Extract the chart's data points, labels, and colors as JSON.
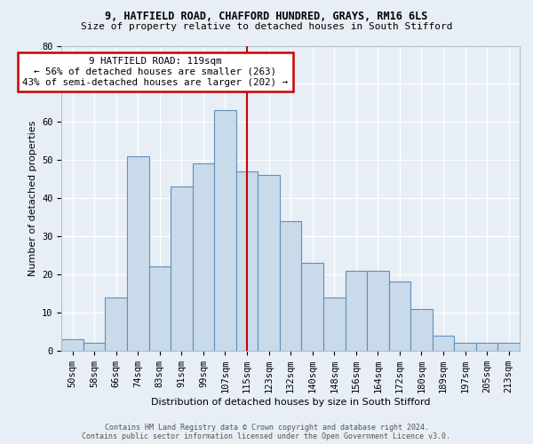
{
  "title_line1": "9, HATFIELD ROAD, CHAFFORD HUNDRED, GRAYS, RM16 6LS",
  "title_line2": "Size of property relative to detached houses in South Stifford",
  "xlabel": "Distribution of detached houses by size in South Stifford",
  "ylabel": "Number of detached properties",
  "bar_labels": [
    "50sqm",
    "58sqm",
    "66sqm",
    "74sqm",
    "83sqm",
    "91sqm",
    "99sqm",
    "107sqm",
    "115sqm",
    "123sqm",
    "132sqm",
    "140sqm",
    "148sqm",
    "156sqm",
    "164sqm",
    "172sqm",
    "180sqm",
    "189sqm",
    "197sqm",
    "205sqm",
    "213sqm"
  ],
  "bar_values": [
    3,
    2,
    14,
    51,
    22,
    43,
    49,
    63,
    47,
    46,
    34,
    23,
    14,
    21,
    21,
    18,
    11,
    4,
    2,
    2,
    2
  ],
  "bar_color": "#c9daea",
  "bar_edge_color": "#6090bb",
  "vline_x_index": 8,
  "vline_color": "#cc0000",
  "annotation_line1": "9 HATFIELD ROAD: 119sqm",
  "annotation_line2": "← 56% of detached houses are smaller (263)",
  "annotation_line3": "43% of semi-detached houses are larger (202) →",
  "annotation_box_color": "#cc0000",
  "ylim": [
    0,
    80
  ],
  "yticks": [
    0,
    10,
    20,
    30,
    40,
    50,
    60,
    70,
    80
  ],
  "footer_line1": "Contains HM Land Registry data © Crown copyright and database right 2024.",
  "footer_line2": "Contains public sector information licensed under the Open Government Licence v3.0.",
  "bg_color": "#e8eef5",
  "plot_bg_color": "#e8eef5",
  "grid_color": "#ffffff",
  "title1_fontsize": 8.5,
  "title2_fontsize": 8,
  "axis_label_fontsize": 8,
  "tick_fontsize": 7.5,
  "footer_fontsize": 6
}
